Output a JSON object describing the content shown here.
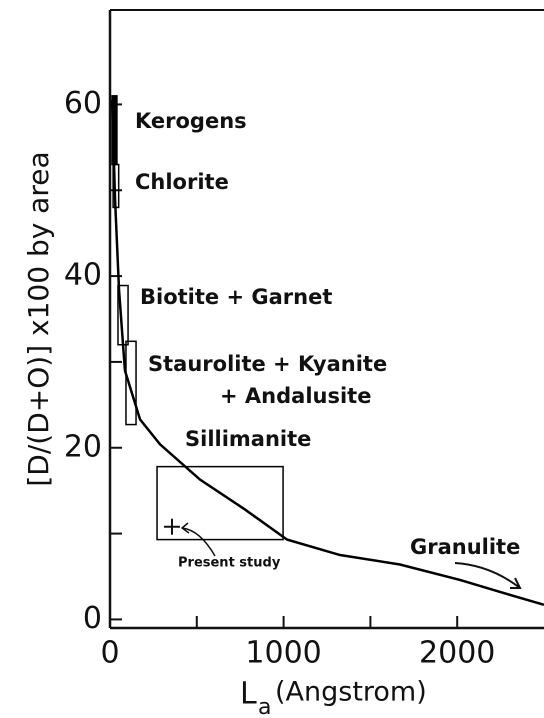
{
  "chart_data": {
    "type": "line",
    "y_label": "[D/(D+O)] x100 by area",
    "x_label": {
      "main": "L",
      "sub": "a",
      "unit": "(Angstrom)"
    },
    "xlim": [
      0,
      2500
    ],
    "ylim": [
      -1,
      71
    ],
    "xticks": [
      0,
      1000,
      2000
    ],
    "xminor": [
      500,
      1500
    ],
    "yticks": [
      0,
      20,
      40,
      60
    ],
    "yminor": [
      10,
      30,
      50
    ],
    "color": "#000000",
    "curve": {
      "x": [
        12,
        29,
        52,
        86,
        173,
        288,
        518,
        778,
        1020,
        1325,
        1670,
        2016,
        2247,
        2500
      ],
      "y": [
        60.5,
        49,
        38.4,
        29,
        23.3,
        20.4,
        16.3,
        12.8,
        9.3,
        7.5,
        6.4,
        4.6,
        3.2,
        1.7
      ]
    },
    "ranges": [
      {
        "label": [
          "Kerogens"
        ],
        "x0": 12,
        "x1": 40,
        "y0": 53,
        "y1": 61,
        "filled": true
      },
      {
        "label": [
          "Chlorite"
        ],
        "x0": 18,
        "x1": 50,
        "y0": 48,
        "y1": 53,
        "filled": false
      },
      {
        "label": [
          "Biotite + Garnet"
        ],
        "x0": 46,
        "x1": 104,
        "y0": 32,
        "y1": 38.9,
        "filled": false
      },
      {
        "label": [
          "Staurolite + Kyanite",
          "+ Andalusite"
        ],
        "x0": 92,
        "x1": 150,
        "y0": 22.7,
        "y1": 32.4,
        "filled": false
      },
      {
        "label": [
          "Sillimanite"
        ],
        "x0": 271,
        "x1": 997,
        "y0": 9.3,
        "y1": 17.8,
        "filled": false
      }
    ],
    "present_study": {
      "label": "Present study",
      "x": 357,
      "y": 10.8
    },
    "annotation": "Granulite"
  }
}
